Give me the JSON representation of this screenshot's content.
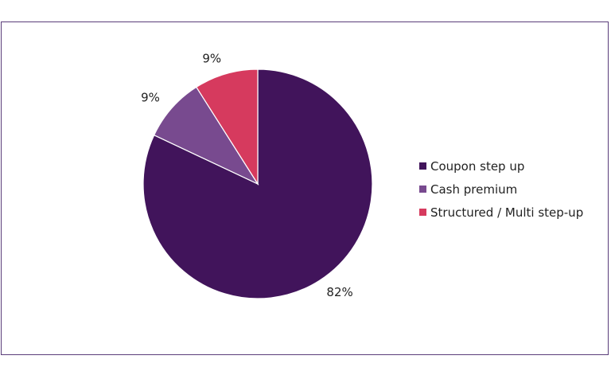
{
  "chart_data": {
    "type": "pie",
    "slices": [
      {
        "label": "Coupon step up",
        "value": 82,
        "display": "82%",
        "color": "#41145b"
      },
      {
        "label": "Cash premium",
        "value": 9,
        "display": "9%",
        "color": "#784a8f"
      },
      {
        "label": "Structured / Multi step-up",
        "value": 9,
        "display": "9%",
        "color": "#d63a5e"
      }
    ],
    "legend_position": "right"
  }
}
